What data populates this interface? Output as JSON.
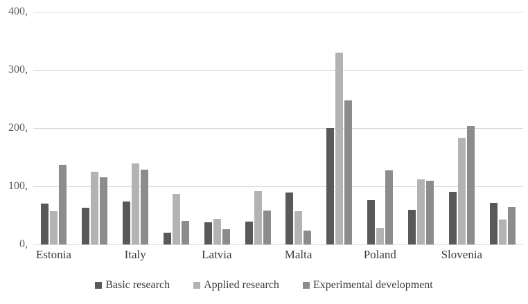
{
  "chart_data": {
    "type": "bar",
    "title": "",
    "xlabel": "",
    "ylabel": "",
    "categories": [
      "Estonia",
      "",
      "Italy",
      "",
      "Latvia",
      "",
      "Malta",
      "",
      "Poland",
      "",
      "Slovenia",
      ""
    ],
    "series": [
      {
        "name": "Basic research",
        "color": "#595959",
        "values": [
          70,
          63,
          74,
          20,
          38,
          39,
          89,
          200,
          76,
          59,
          91,
          72
        ]
      },
      {
        "name": "Applied research",
        "color": "#b3b3b3",
        "values": [
          57,
          125,
          139,
          87,
          44,
          92,
          57,
          330,
          29,
          112,
          183,
          43
        ]
      },
      {
        "name": "Experimental development",
        "color": "#8c8c8c",
        "values": [
          137,
          115,
          128,
          40,
          26,
          58,
          24,
          248,
          127,
          109,
          203,
          64
        ]
      }
    ],
    "ylim": [
      0,
      400
    ],
    "ytick_interval": 100,
    "ytick_labels": [
      "0,",
      "100,",
      "200,",
      "300,",
      "400,"
    ],
    "grid": true,
    "legend_position": "bottom"
  },
  "colors": {
    "background": "#ffffff",
    "gridline": "#d9d9d9",
    "axis_tick_text": "#595959",
    "category_text": "#3b3b3b",
    "legend_text": "#3b3b3b"
  }
}
